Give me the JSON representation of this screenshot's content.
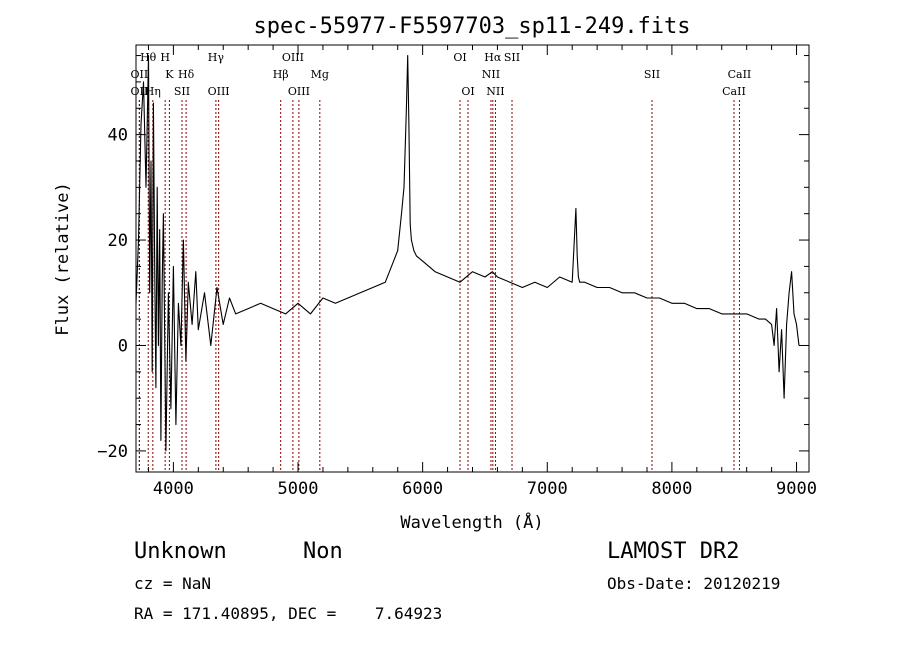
{
  "chart_data": {
    "type": "line",
    "title": "spec-55977-F5597703_sp11-249.fits",
    "xlabel": "Wavelength (Å)",
    "ylabel": "Flux (relative)",
    "xlim": [
      3700,
      9100
    ],
    "ylim": [
      -24,
      57
    ],
    "xticks": [
      4000,
      5000,
      6000,
      7000,
      8000,
      9000
    ],
    "yticks": [
      -20,
      0,
      20,
      40
    ],
    "grid": false,
    "series": [
      {
        "values_x": [
          3700,
          3720,
          3740,
          3760,
          3780,
          3800,
          3810,
          3820,
          3830,
          3840,
          3850,
          3860,
          3870,
          3880,
          3890,
          3900,
          3910,
          3920,
          3940,
          3960,
          3980,
          4000,
          4020,
          4040,
          4060,
          4080,
          4100,
          4120,
          4150,
          4180,
          4200,
          4250,
          4300,
          4350,
          4400,
          4450,
          4500,
          4600,
          4700,
          4800,
          4900,
          5000,
          5100,
          5200,
          5300,
          5400,
          5500,
          5600,
          5700,
          5750,
          5800,
          5830,
          5850,
          5870,
          5880,
          5890,
          5900,
          5910,
          5930,
          5950,
          6000,
          6050,
          6100,
          6200,
          6300,
          6400,
          6500,
          6560,
          6600,
          6700,
          6800,
          6900,
          7000,
          7100,
          7200,
          7230,
          7240,
          7250,
          7260,
          7300,
          7400,
          7500,
          7600,
          7700,
          7800,
          7900,
          8000,
          8100,
          8200,
          8300,
          8400,
          8500,
          8600,
          8700,
          8750,
          8800,
          8820,
          8840,
          8860,
          8880,
          8900,
          8920,
          8940,
          8960,
          8980,
          9000,
          9020
        ],
        "values_y": [
          8,
          20,
          42,
          50,
          30,
          55,
          10,
          35,
          -5,
          46,
          15,
          -8,
          30,
          0,
          22,
          -18,
          12,
          25,
          -20,
          10,
          -12,
          15,
          -15,
          8,
          0,
          20,
          -3,
          12,
          4,
          14,
          3,
          10,
          0,
          11,
          4,
          9,
          6,
          7,
          8,
          7,
          6,
          8,
          6,
          9,
          8,
          9,
          10,
          11,
          12,
          15,
          18,
          25,
          30,
          45,
          55,
          42,
          23,
          20,
          18,
          17,
          16,
          15,
          14,
          13,
          12,
          14,
          13,
          14,
          13,
          12,
          11,
          12,
          11,
          13,
          12,
          26,
          17,
          13,
          12,
          12,
          11,
          11,
          10,
          10,
          9,
          9,
          8,
          8,
          7,
          7,
          6,
          6,
          6,
          5,
          5,
          4,
          0,
          7,
          -5,
          3,
          -10,
          4,
          10,
          14,
          6,
          4,
          0
        ]
      }
    ],
    "lines": [
      {
        "name": "OII",
        "x": 3727,
        "row": 1
      },
      {
        "name": "Hθ",
        "x": 3798,
        "row": 0
      },
      {
        "name": "OII",
        "x": 3727,
        "row": 2
      },
      {
        "name": "Hη",
        "x": 3835,
        "row": 2
      },
      {
        "name": "H",
        "x": 3934,
        "row": 0
      },
      {
        "name": "K",
        "x": 3968,
        "row": 1
      },
      {
        "name": "SII",
        "x": 4069,
        "row": 2
      },
      {
        "name": "Hδ",
        "x": 4102,
        "row": 1
      },
      {
        "name": "Hγ",
        "x": 4341,
        "row": 0
      },
      {
        "name": "OIII",
        "x": 4363,
        "row": 2
      },
      {
        "name": "Hβ",
        "x": 4861,
        "row": 1
      },
      {
        "name": "OIII",
        "x": 4959,
        "row": 0
      },
      {
        "name": "OIII",
        "x": 5007,
        "row": 2
      },
      {
        "name": "Mg",
        "x": 5175,
        "row": 1
      },
      {
        "name": "OI",
        "x": 6300,
        "row": 0
      },
      {
        "name": "OI",
        "x": 6364,
        "row": 2
      },
      {
        "name": "Hα",
        "x": 6563,
        "row": 0
      },
      {
        "name": "NII",
        "x": 6548,
        "row": 1
      },
      {
        "name": "NII",
        "x": 6584,
        "row": 2
      },
      {
        "name": "SII",
        "x": 6717,
        "row": 0
      },
      {
        "name": "SII",
        "x": 7840,
        "row": 1
      },
      {
        "name": "CaII",
        "x": 8542,
        "row": 1
      },
      {
        "name": "CaII",
        "x": 8498,
        "row": 2
      }
    ],
    "line_color": "#8b0000"
  },
  "info": {
    "object_class": "Unknown",
    "subclass": "Non",
    "survey": "LAMOST DR2",
    "cz": "cz = NaN",
    "obs_date": "Obs-Date: 20120219",
    "coords": "RA = 171.40895, DEC =    7.64923"
  }
}
